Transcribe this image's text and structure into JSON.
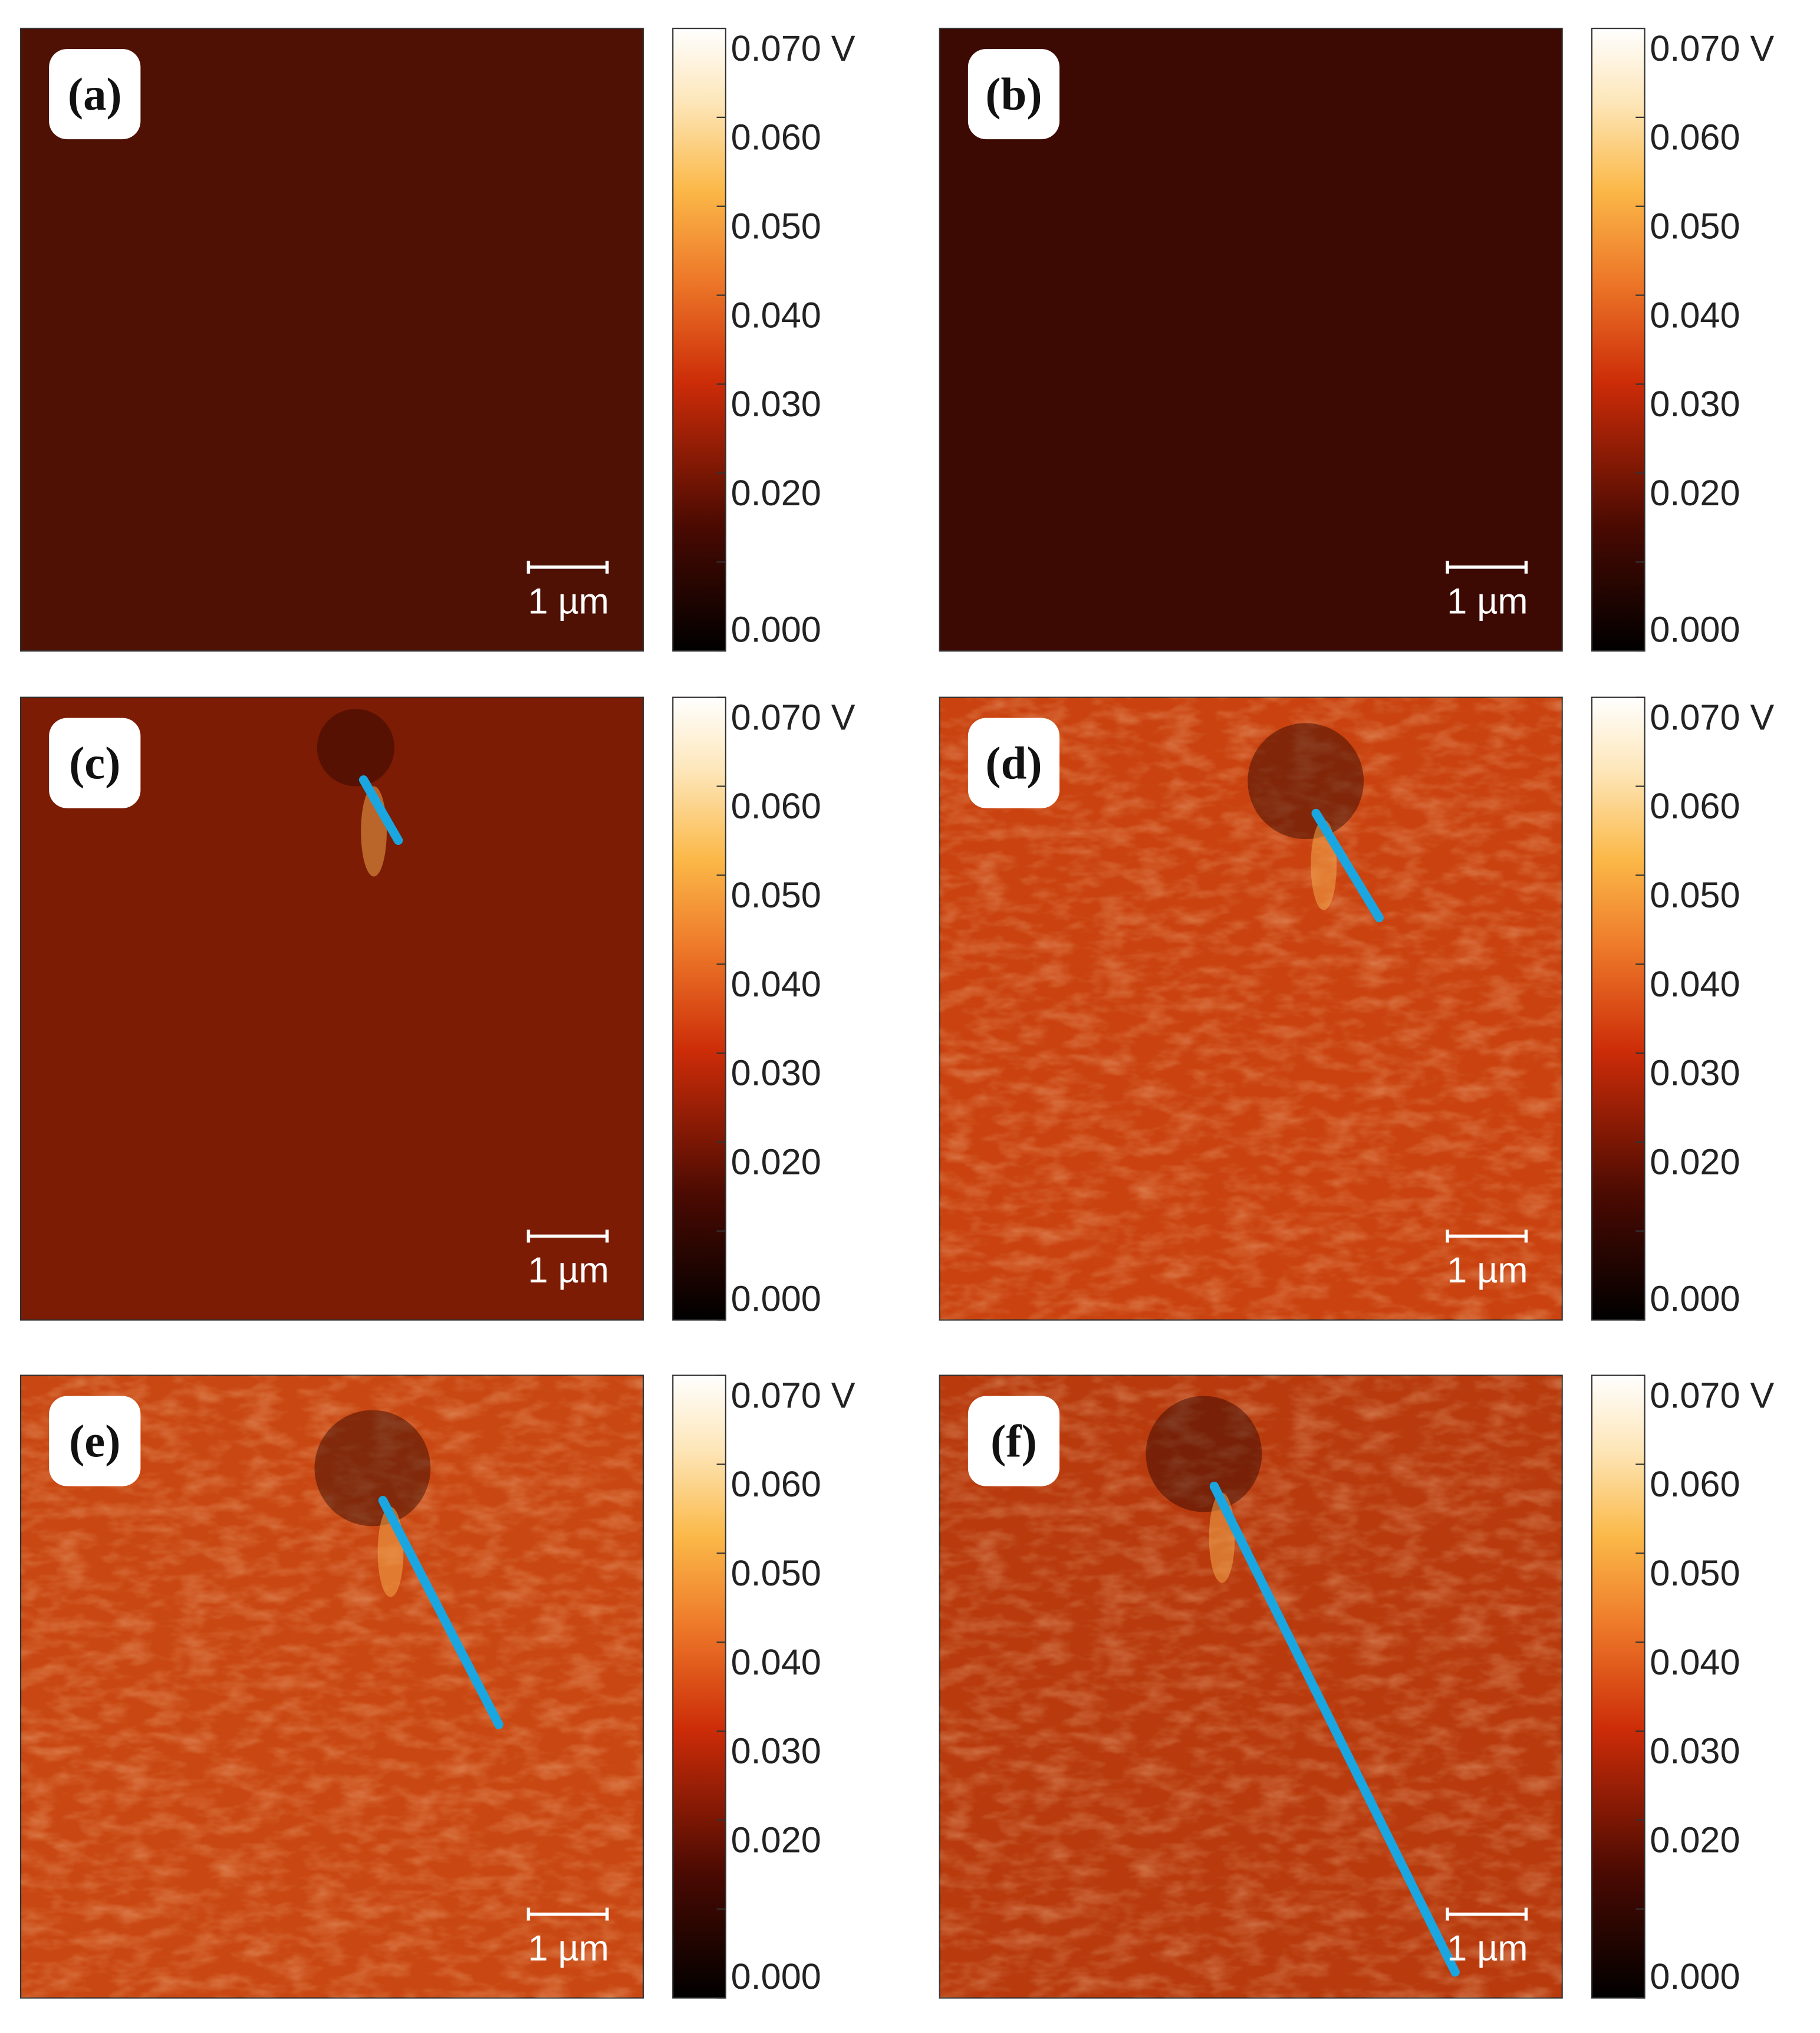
{
  "panels": [
    {
      "label": "(a)",
      "scale_bar": "1 µm"
    },
    {
      "label": "(b)",
      "scale_bar": "1 µm"
    },
    {
      "label": "(c)",
      "scale_bar": "1 µm"
    },
    {
      "label": "(d)",
      "scale_bar": "1 µm"
    },
    {
      "label": "(e)",
      "scale_bar": "1 µm"
    },
    {
      "label": "(f)",
      "scale_bar": "1 µm"
    }
  ],
  "colorbar_ticks": [
    "0.070 V",
    "0.060",
    "0.050",
    "0.040",
    "0.030",
    "0.020",
    "0.000"
  ]
}
